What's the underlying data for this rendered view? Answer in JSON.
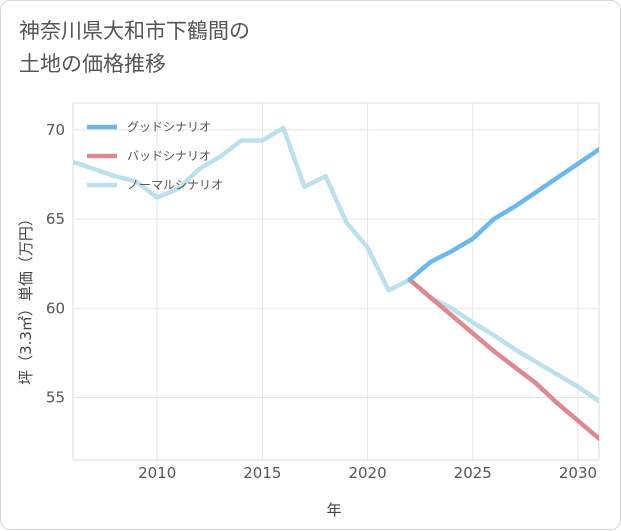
{
  "title": {
    "line1": "神奈川県大和市下鶴間の",
    "line2": "土地の価格推移"
  },
  "chart_data": {
    "type": "line",
    "xlabel": "年",
    "ylabel": "坪（3.3㎡）単価（万円）",
    "xlim": [
      2006,
      2031
    ],
    "ylim": [
      51.5,
      71.5
    ],
    "xticks": [
      2010,
      2015,
      2020,
      2025,
      2030
    ],
    "yticks": [
      55,
      60,
      65,
      70
    ],
    "grid": true,
    "legend_position": "top-left",
    "series": [
      {
        "name": "グッドシナリオ",
        "color": "#6cb8ee",
        "x": [
          2022,
          2023,
          2024,
          2025,
          2026,
          2027,
          2028,
          2029,
          2030,
          2031
        ],
        "y": [
          61.6,
          62.6,
          63.2,
          63.9,
          65.0,
          65.7,
          66.5,
          67.3,
          68.1,
          68.9
        ]
      },
      {
        "name": "バッドシナリオ",
        "color": "#de8890",
        "x": [
          2022,
          2023,
          2024,
          2025,
          2026,
          2027,
          2028,
          2029,
          2030,
          2031
        ],
        "y": [
          61.6,
          60.6,
          59.6,
          58.6,
          57.6,
          56.7,
          55.8,
          54.7,
          53.7,
          52.7
        ]
      },
      {
        "name": "ノーマルシナリオ",
        "color": "#bde0ef",
        "x": [
          2006,
          2007,
          2008,
          2009,
          2010,
          2011,
          2012,
          2013,
          2014,
          2015,
          2016,
          2017,
          2018,
          2019,
          2020,
          2021,
          2022,
          2023,
          2024,
          2025,
          2026,
          2027,
          2028,
          2029,
          2030,
          2031
        ],
        "y": [
          68.2,
          67.8,
          67.4,
          67.1,
          66.2,
          66.7,
          67.8,
          68.5,
          69.4,
          69.4,
          70.1,
          66.8,
          67.4,
          64.8,
          63.4,
          61.0,
          61.6,
          60.6,
          60.0,
          59.2,
          58.5,
          57.7,
          57.0,
          56.3,
          55.6,
          54.8
        ]
      }
    ]
  }
}
